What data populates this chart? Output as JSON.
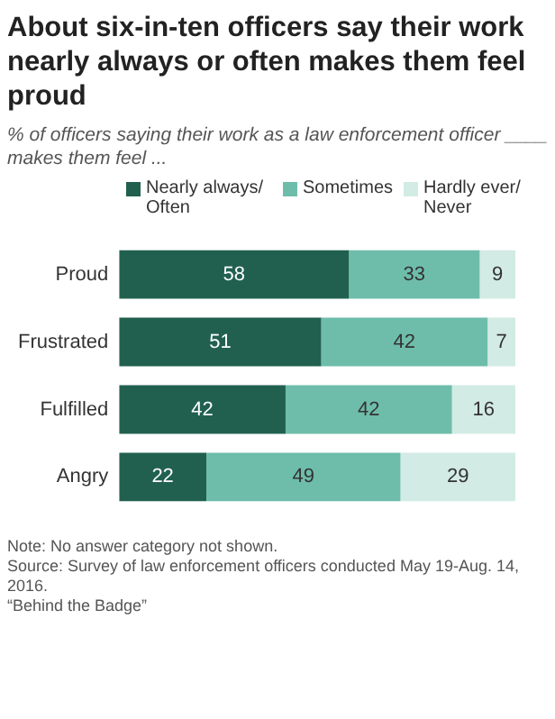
{
  "chart_data": {
    "type": "bar",
    "orientation": "horizontal",
    "stacked": true,
    "title": "About six-in-ten officers say their work nearly always or often makes them feel proud",
    "subtitle": "% of officers saying their work as a law enforcement officer ____ makes them feel ...",
    "categories": [
      "Proud",
      "Frustrated",
      "Fulfilled",
      "Angry"
    ],
    "series": [
      {
        "name": "Nearly always/ Often",
        "color": "#21604f",
        "values": [
          58,
          51,
          42,
          22
        ]
      },
      {
        "name": "Sometimes",
        "color": "#6ebdab",
        "values": [
          33,
          42,
          42,
          49
        ]
      },
      {
        "name": "Hardly ever/ Never",
        "color": "#d2ebe4",
        "values": [
          9,
          7,
          16,
          29
        ]
      }
    ],
    "data_labels": true,
    "legend": "top",
    "grid": false,
    "annotations": [
      "Note: No answer category not shown.",
      "Source: Survey of law enforcement officers conducted May 19-Aug. 14, 2016.",
      "“Behind the Badge”"
    ]
  }
}
